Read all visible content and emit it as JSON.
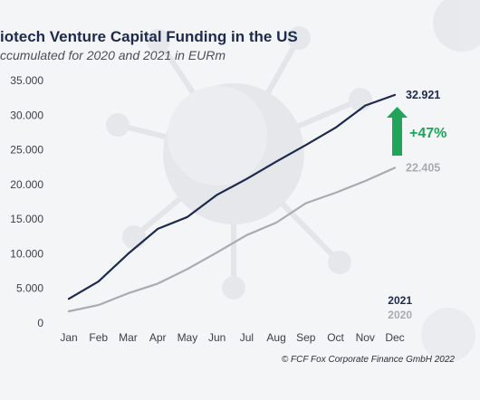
{
  "colors": {
    "series_2021": "#1d2a4d",
    "series_2020": "#a9abaf",
    "change_arrow": "#1fa45a",
    "background": "#f4f5f7"
  },
  "chart_data": {
    "type": "line",
    "title": "iotech Venture Capital Funding in the US",
    "subtitle": "ccumulated for 2020 and 2021 in EURm",
    "x": [
      "Jan",
      "Feb",
      "Mar",
      "Apr",
      "May",
      "Jun",
      "Jul",
      "Aug",
      "Sep",
      "Oct",
      "Nov",
      "Dec"
    ],
    "yticks": [
      "35.000",
      "30.000",
      "25.000",
      "20.000",
      "15.000",
      "10.000",
      "5.000",
      "0"
    ],
    "ylim": [
      0,
      35000
    ],
    "grid": false,
    "series": [
      {
        "name": "2021",
        "values": [
          3500,
          6000,
          10000,
          13600,
          15300,
          18500,
          20800,
          23300,
          25700,
          28200,
          31400,
          32921
        ],
        "end_label": "32.921"
      },
      {
        "name": "2020",
        "values": [
          1700,
          2600,
          4300,
          5700,
          7800,
          10200,
          12700,
          14500,
          17300,
          18800,
          20500,
          22405
        ],
        "end_label": "22.405"
      }
    ],
    "annotation": {
      "text": "+47%",
      "icon": "up-arrow-icon"
    },
    "legend": {
      "position": "bottom-right",
      "entries": [
        "2021",
        "2020"
      ]
    },
    "source": "© FCF Fox Corporate Finance GmbH 2022"
  }
}
